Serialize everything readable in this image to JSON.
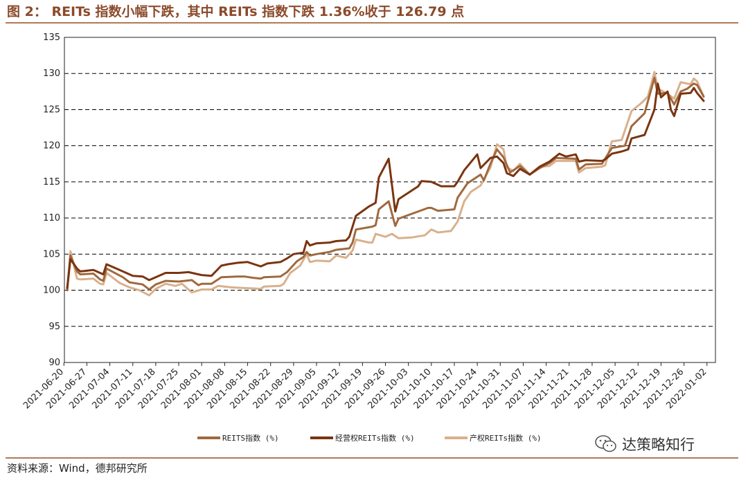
{
  "title": "图 2：  REITs 指数小幅下跌，其中 REITs 指数下跌 1.36%收于 126.79 点",
  "source": "资料来源：Wind，德邦研究所",
  "watermark": "达策略知行",
  "colors": {
    "reits": "#A0693E",
    "operating": "#7A3410",
    "property": "#D9B08C",
    "grid": "#000000",
    "rule": "#B07A55"
  },
  "chart_data": {
    "type": "line",
    "ylim": [
      90,
      135
    ],
    "yticks": [
      90,
      95,
      100,
      105,
      110,
      115,
      120,
      125,
      130,
      135
    ],
    "grid": "horizontal dashed",
    "legend_position": "bottom",
    "x_start": "2021-06-21",
    "x_end": "2022-01-01",
    "xticks": [
      "2021-06-20",
      "2021-06-27",
      "2021-07-04",
      "2021-07-11",
      "2021-07-18",
      "2021-07-25",
      "2021-08-01",
      "2021-08-08",
      "2021-08-15",
      "2021-08-22",
      "2021-08-29",
      "2021-09-05",
      "2021-09-12",
      "2021-09-19",
      "2021-09-26",
      "2021-10-03",
      "2021-10-10",
      "2021-10-17",
      "2021-10-24",
      "2021-10-31",
      "2021-11-07",
      "2021-11-14",
      "2021-11-21",
      "2021-11-28",
      "2021-12-05",
      "2021-12-12",
      "2021-12-19",
      "2021-12-26",
      "2022-01-02"
    ],
    "series": [
      {
        "name": "REITS指数 (%)",
        "color": "#A0693E",
        "points": [
          [
            "2021-06-21",
            100.0
          ],
          [
            "2021-06-22",
            104.8
          ],
          [
            "2021-06-24",
            102.6
          ],
          [
            "2021-06-25",
            102.2
          ],
          [
            "2021-06-29",
            102.3
          ],
          [
            "2021-07-01",
            101.5
          ],
          [
            "2021-07-02",
            101.3
          ],
          [
            "2021-07-03",
            103.0
          ],
          [
            "2021-07-08",
            101.8
          ],
          [
            "2021-07-10",
            101.1
          ],
          [
            "2021-07-14",
            100.8
          ],
          [
            "2021-07-16",
            100.1
          ],
          [
            "2021-07-18",
            100.8
          ],
          [
            "2021-07-21",
            101.3
          ],
          [
            "2021-07-25",
            101.2
          ],
          [
            "2021-07-29",
            101.4
          ],
          [
            "2021-07-31",
            100.7
          ],
          [
            "2021-08-01",
            100.9
          ],
          [
            "2021-08-04",
            100.9
          ],
          [
            "2021-08-07",
            101.8
          ],
          [
            "2021-08-12",
            101.9
          ],
          [
            "2021-08-14",
            101.9
          ],
          [
            "2021-08-17",
            101.7
          ],
          [
            "2021-08-19",
            101.6
          ],
          [
            "2021-08-20",
            101.8
          ],
          [
            "2021-08-25",
            101.9
          ],
          [
            "2021-08-27",
            102.5
          ],
          [
            "2021-08-30",
            104.0
          ],
          [
            "2021-09-01",
            104.6
          ],
          [
            "2021-09-02",
            105.3
          ],
          [
            "2021-09-03",
            104.8
          ],
          [
            "2021-09-05",
            105.0
          ],
          [
            "2021-09-09",
            105.3
          ],
          [
            "2021-09-11",
            105.6
          ],
          [
            "2021-09-15",
            105.8
          ],
          [
            "2021-09-16",
            106.6
          ],
          [
            "2021-09-17",
            108.4
          ],
          [
            "2021-09-22",
            108.8
          ],
          [
            "2021-09-23",
            109.0
          ],
          [
            "2021-09-24",
            111.2
          ],
          [
            "2021-09-27",
            112.3
          ],
          [
            "2021-09-29",
            108.9
          ],
          [
            "2021-09-30",
            109.9
          ],
          [
            "2021-10-03",
            110.4
          ],
          [
            "2021-10-09",
            111.4
          ],
          [
            "2021-10-10",
            111.4
          ],
          [
            "2021-10-12",
            111.0
          ],
          [
            "2021-10-17",
            111.2
          ],
          [
            "2021-10-18",
            112.8
          ],
          [
            "2021-10-21",
            114.8
          ],
          [
            "2021-10-25",
            116.0
          ],
          [
            "2021-10-26",
            115.2
          ],
          [
            "2021-10-28",
            117.5
          ],
          [
            "2021-10-30",
            119.5
          ],
          [
            "2021-11-01",
            118.4
          ],
          [
            "2021-11-03",
            116.3
          ],
          [
            "2021-11-06",
            117.2
          ],
          [
            "2021-11-07",
            116.8
          ],
          [
            "2021-11-09",
            116.0
          ],
          [
            "2021-11-12",
            116.9
          ],
          [
            "2021-11-15",
            117.6
          ],
          [
            "2021-11-17",
            118.3
          ],
          [
            "2021-11-23",
            118.2
          ],
          [
            "2021-11-24",
            116.7
          ],
          [
            "2021-11-26",
            117.4
          ],
          [
            "2021-12-01",
            117.5
          ],
          [
            "2021-12-04",
            119.7
          ],
          [
            "2021-12-08",
            120.0
          ],
          [
            "2021-12-10",
            122.7
          ],
          [
            "2021-12-12",
            123.6
          ],
          [
            "2021-12-14",
            124.5
          ],
          [
            "2021-12-17",
            129.4
          ],
          [
            "2021-12-18",
            127.2
          ],
          [
            "2021-12-21",
            127.3
          ],
          [
            "2021-12-23",
            125.7
          ],
          [
            "2021-12-25",
            127.5
          ],
          [
            "2021-12-27",
            127.9
          ],
          [
            "2021-12-29",
            128.6
          ],
          [
            "2021-12-30",
            128.4
          ],
          [
            "2022-01-01",
            126.8
          ]
        ]
      },
      {
        "name": "经营权REITs指数 (%)",
        "color": "#7A3410",
        "points": [
          [
            "2021-06-21",
            100.3
          ],
          [
            "2021-06-22",
            104.3
          ],
          [
            "2021-06-24",
            103.0
          ],
          [
            "2021-06-25",
            102.6
          ],
          [
            "2021-06-29",
            102.8
          ],
          [
            "2021-07-01",
            102.4
          ],
          [
            "2021-07-02",
            102.2
          ],
          [
            "2021-07-03",
            103.6
          ],
          [
            "2021-07-08",
            102.6
          ],
          [
            "2021-07-11",
            102.0
          ],
          [
            "2021-07-14",
            101.9
          ],
          [
            "2021-07-16",
            101.4
          ],
          [
            "2021-07-18",
            101.8
          ],
          [
            "2021-07-21",
            102.4
          ],
          [
            "2021-07-25",
            102.4
          ],
          [
            "2021-07-28",
            102.5
          ],
          [
            "2021-07-31",
            102.2
          ],
          [
            "2021-08-01",
            102.1
          ],
          [
            "2021-08-04",
            102.0
          ],
          [
            "2021-08-07",
            103.4
          ],
          [
            "2021-08-09",
            103.6
          ],
          [
            "2021-08-12",
            103.8
          ],
          [
            "2021-08-15",
            103.9
          ],
          [
            "2021-08-17",
            103.6
          ],
          [
            "2021-08-19",
            103.3
          ],
          [
            "2021-08-21",
            103.7
          ],
          [
            "2021-08-25",
            103.9
          ],
          [
            "2021-08-27",
            104.4
          ],
          [
            "2021-08-29",
            105.0
          ],
          [
            "2021-09-01",
            105.2
          ],
          [
            "2021-09-02",
            106.8
          ],
          [
            "2021-09-03",
            106.2
          ],
          [
            "2021-09-05",
            106.5
          ],
          [
            "2021-09-09",
            106.6
          ],
          [
            "2021-09-11",
            106.8
          ],
          [
            "2021-09-14",
            106.9
          ],
          [
            "2021-09-15",
            107.4
          ],
          [
            "2021-09-17",
            110.3
          ],
          [
            "2021-09-21",
            111.6
          ],
          [
            "2021-09-23",
            112.1
          ],
          [
            "2021-09-24",
            115.6
          ],
          [
            "2021-09-27",
            118.2
          ],
          [
            "2021-09-29",
            110.9
          ],
          [
            "2021-09-30",
            112.6
          ],
          [
            "2021-10-06",
            114.4
          ],
          [
            "2021-10-07",
            115.1
          ],
          [
            "2021-10-10",
            115.0
          ],
          [
            "2021-10-13",
            114.4
          ],
          [
            "2021-10-17",
            114.4
          ],
          [
            "2021-10-18",
            115.0
          ],
          [
            "2021-10-20",
            116.6
          ],
          [
            "2021-10-24",
            118.8
          ],
          [
            "2021-10-25",
            116.9
          ],
          [
            "2021-10-28",
            118.3
          ],
          [
            "2021-10-30",
            118.5
          ],
          [
            "2021-11-01",
            117.6
          ],
          [
            "2021-11-02",
            116.2
          ],
          [
            "2021-11-04",
            115.8
          ],
          [
            "2021-11-06",
            116.8
          ],
          [
            "2021-11-09",
            116.0
          ],
          [
            "2021-11-12",
            117.1
          ],
          [
            "2021-11-15",
            117.8
          ],
          [
            "2021-11-18",
            118.9
          ],
          [
            "2021-11-20",
            118.5
          ],
          [
            "2021-11-23",
            118.8
          ],
          [
            "2021-11-24",
            117.8
          ],
          [
            "2021-11-26",
            118.0
          ],
          [
            "2021-12-01",
            117.9
          ],
          [
            "2021-12-02",
            118.1
          ],
          [
            "2021-12-04",
            118.9
          ],
          [
            "2021-12-07",
            119.2
          ],
          [
            "2021-12-09",
            119.5
          ],
          [
            "2021-12-10",
            121.0
          ],
          [
            "2021-12-14",
            121.5
          ],
          [
            "2021-12-17",
            125.0
          ],
          [
            "2021-12-18",
            128.6
          ],
          [
            "2021-12-19",
            126.7
          ],
          [
            "2021-12-21",
            127.5
          ],
          [
            "2021-12-22",
            125.0
          ],
          [
            "2021-12-23",
            124.1
          ],
          [
            "2021-12-25",
            127.2
          ],
          [
            "2021-12-28",
            127.3
          ],
          [
            "2021-12-29",
            128.0
          ],
          [
            "2021-12-30",
            127.3
          ],
          [
            "2022-01-01",
            126.2
          ]
        ]
      },
      {
        "name": "产权REITs指数 (%)",
        "color": "#D9B08C",
        "points": [
          [
            "2021-06-21",
            100.0
          ],
          [
            "2021-06-22",
            105.4
          ],
          [
            "2021-06-24",
            101.6
          ],
          [
            "2021-06-25",
            101.5
          ],
          [
            "2021-06-29",
            101.6
          ],
          [
            "2021-07-01",
            100.9
          ],
          [
            "2021-07-02",
            100.8
          ],
          [
            "2021-07-03",
            102.4
          ],
          [
            "2021-07-07",
            101.0
          ],
          [
            "2021-07-10",
            100.4
          ],
          [
            "2021-07-13",
            100.0
          ],
          [
            "2021-07-16",
            99.3
          ],
          [
            "2021-07-18",
            100.2
          ],
          [
            "2021-07-21",
            100.9
          ],
          [
            "2021-07-24",
            100.6
          ],
          [
            "2021-07-26",
            100.9
          ],
          [
            "2021-07-29",
            99.7
          ],
          [
            "2021-08-01",
            100.1
          ],
          [
            "2021-08-04",
            100.1
          ],
          [
            "2021-08-06",
            100.6
          ],
          [
            "2021-08-10",
            100.4
          ],
          [
            "2021-08-14",
            100.3
          ],
          [
            "2021-08-19",
            100.2
          ],
          [
            "2021-08-20",
            100.5
          ],
          [
            "2021-08-25",
            100.6
          ],
          [
            "2021-08-26",
            100.9
          ],
          [
            "2021-08-28",
            102.4
          ],
          [
            "2021-08-31",
            103.4
          ],
          [
            "2021-09-02",
            105.0
          ],
          [
            "2021-09-03",
            103.9
          ],
          [
            "2021-09-05",
            104.1
          ],
          [
            "2021-09-09",
            104.0
          ],
          [
            "2021-09-11",
            104.8
          ],
          [
            "2021-09-14",
            104.5
          ],
          [
            "2021-09-16",
            105.5
          ],
          [
            "2021-09-17",
            107.0
          ],
          [
            "2021-09-21",
            106.6
          ],
          [
            "2021-09-22",
            106.6
          ],
          [
            "2021-09-23",
            107.8
          ],
          [
            "2021-09-26",
            107.4
          ],
          [
            "2021-09-28",
            107.8
          ],
          [
            "2021-09-30",
            107.2
          ],
          [
            "2021-10-04",
            107.3
          ],
          [
            "2021-10-08",
            107.6
          ],
          [
            "2021-10-10",
            108.4
          ],
          [
            "2021-10-12",
            108.0
          ],
          [
            "2021-10-16",
            108.2
          ],
          [
            "2021-10-18",
            109.5
          ],
          [
            "2021-10-20",
            112.3
          ],
          [
            "2021-10-22",
            113.6
          ],
          [
            "2021-10-24",
            114.2
          ],
          [
            "2021-10-25",
            114.5
          ],
          [
            "2021-10-28",
            117.0
          ],
          [
            "2021-10-30",
            120.2
          ],
          [
            "2021-11-01",
            119.5
          ],
          [
            "2021-11-02",
            117.0
          ],
          [
            "2021-11-04",
            116.5
          ],
          [
            "2021-11-06",
            117.5
          ],
          [
            "2021-11-09",
            116.0
          ],
          [
            "2021-11-12",
            117.1
          ],
          [
            "2021-11-15",
            117.2
          ],
          [
            "2021-11-17",
            117.9
          ],
          [
            "2021-11-23",
            117.9
          ],
          [
            "2021-11-24",
            116.3
          ],
          [
            "2021-11-26",
            116.9
          ],
          [
            "2021-12-01",
            117.1
          ],
          [
            "2021-12-02",
            117.3
          ],
          [
            "2021-12-04",
            120.6
          ],
          [
            "2021-12-07",
            120.8
          ],
          [
            "2021-12-10",
            124.8
          ],
          [
            "2021-12-13",
            125.9
          ],
          [
            "2021-12-15",
            126.8
          ],
          [
            "2021-12-17",
            130.2
          ],
          [
            "2021-12-18",
            127.9
          ],
          [
            "2021-12-21",
            127.2
          ],
          [
            "2021-12-23",
            126.5
          ],
          [
            "2021-12-25",
            128.8
          ],
          [
            "2021-12-28",
            128.5
          ],
          [
            "2021-12-29",
            129.3
          ],
          [
            "2021-12-30",
            128.9
          ],
          [
            "2022-01-01",
            126.8
          ]
        ]
      }
    ]
  }
}
